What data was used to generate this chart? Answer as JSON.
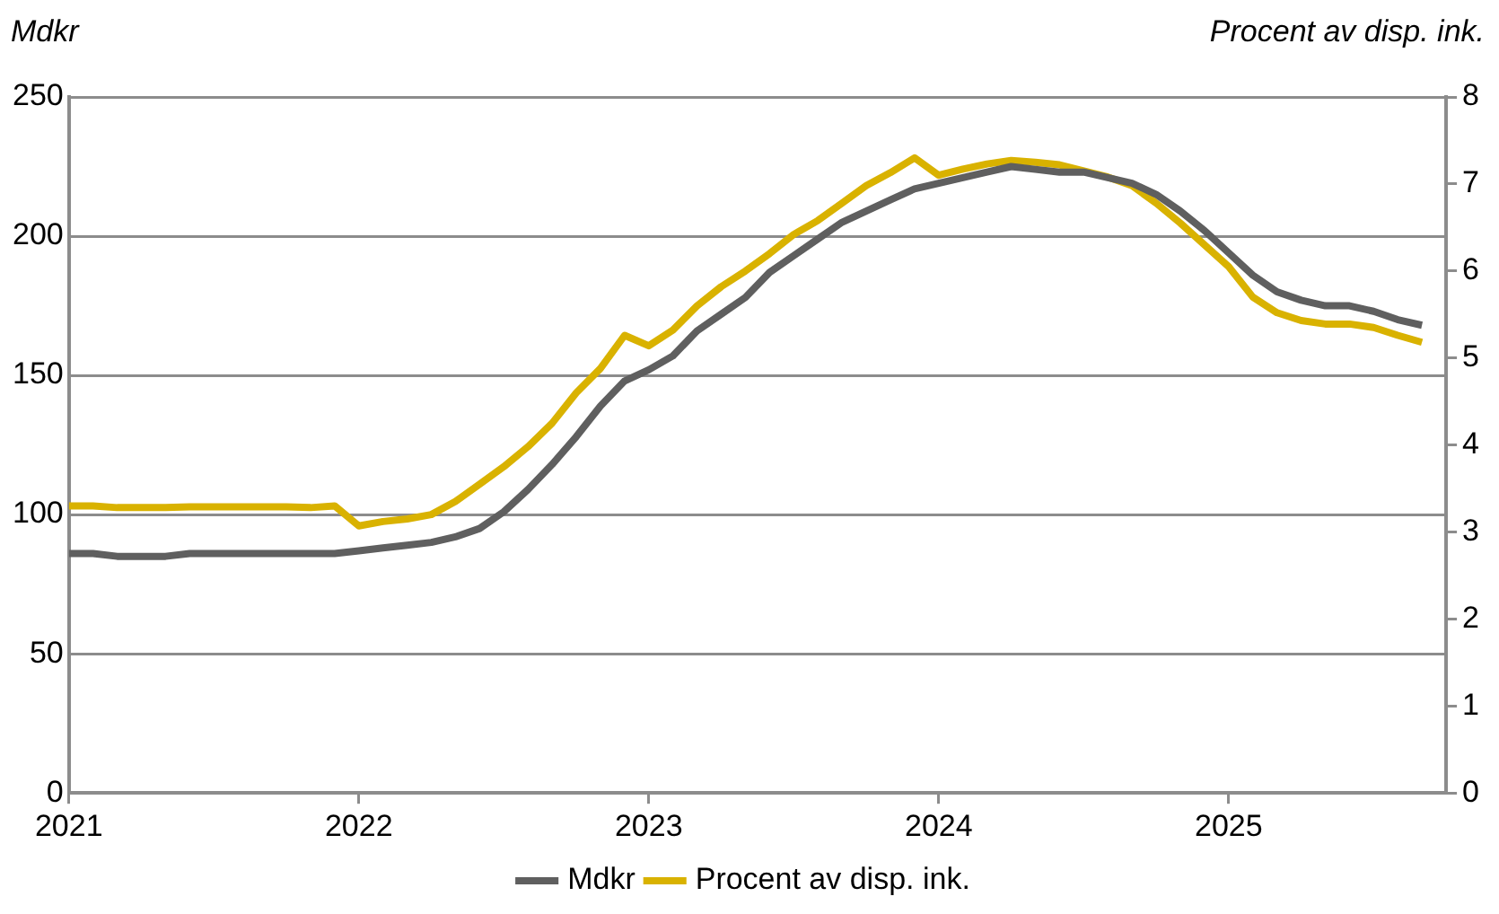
{
  "chart_data": {
    "type": "line",
    "ylabel": "Mdkr",
    "y2label": "Procent av disp. ink.",
    "x": [
      "2021-01",
      "2021-02",
      "2021-03",
      "2021-04",
      "2021-05",
      "2021-06",
      "2021-07",
      "2021-08",
      "2021-09",
      "2021-10",
      "2021-11",
      "2021-12",
      "2022-01",
      "2022-02",
      "2022-03",
      "2022-04",
      "2022-05",
      "2022-06",
      "2022-07",
      "2022-08",
      "2022-09",
      "2022-10",
      "2022-11",
      "2022-12",
      "2023-01",
      "2023-02",
      "2023-03",
      "2023-04",
      "2023-05",
      "2023-06",
      "2023-07",
      "2023-08",
      "2023-09",
      "2023-10",
      "2023-11",
      "2023-12",
      "2024-01",
      "2024-02",
      "2024-03",
      "2024-04",
      "2024-05",
      "2024-06",
      "2024-07",
      "2024-08",
      "2024-09",
      "2024-10",
      "2024-11",
      "2024-12",
      "2025-01",
      "2025-02",
      "2025-03",
      "2025-04",
      "2025-05",
      "2025-06",
      "2025-07",
      "2025-08",
      "2025-09"
    ],
    "series": [
      {
        "name": "Mdkr",
        "color": "#5f5f5f",
        "values": [
          86,
          86,
          85,
          85,
          85,
          86,
          86,
          86,
          86,
          86,
          86,
          86,
          87,
          88,
          89,
          90,
          92,
          95,
          101,
          109,
          118,
          128,
          139,
          148,
          152,
          157,
          166,
          172,
          178,
          187,
          193,
          199,
          205,
          209,
          213,
          217,
          219,
          221,
          223,
          225,
          224,
          223,
          223,
          221,
          219,
          215,
          209,
          202,
          194,
          186,
          180,
          177,
          175,
          175,
          173,
          170,
          168
        ]
      },
      {
        "name": "Procent av disp. ink.",
        "color": "#d9b200",
        "axis": "y2",
        "values": [
          3.3,
          3.3,
          3.28,
          3.28,
          3.28,
          3.29,
          3.29,
          3.29,
          3.29,
          3.29,
          3.28,
          3.3,
          3.07,
          3.12,
          3.15,
          3.2,
          3.35,
          3.55,
          3.75,
          3.98,
          4.25,
          4.6,
          4.88,
          5.26,
          5.14,
          5.32,
          5.6,
          5.82,
          6.0,
          6.2,
          6.42,
          6.58,
          6.78,
          6.98,
          7.13,
          7.3,
          7.1,
          7.17,
          7.23,
          7.27,
          7.25,
          7.22,
          7.15,
          7.08,
          6.98,
          6.78,
          6.55,
          6.3,
          6.05,
          5.7,
          5.52,
          5.43,
          5.39,
          5.39,
          5.35,
          5.26,
          5.18
        ]
      }
    ],
    "xlim": [
      "2021-01",
      "2025-10"
    ],
    "xticks": [
      "2021",
      "2022",
      "2023",
      "2024",
      "2025"
    ],
    "ylim": [
      0,
      250
    ],
    "yticks": [
      0,
      50,
      100,
      150,
      200,
      250
    ],
    "y2lim": [
      0,
      8
    ],
    "y2ticks": [
      0,
      1,
      2,
      3,
      4,
      5,
      6,
      7,
      8
    ],
    "grid": "y",
    "legend": "bottom",
    "marker": "none",
    "line_style": "solid"
  }
}
